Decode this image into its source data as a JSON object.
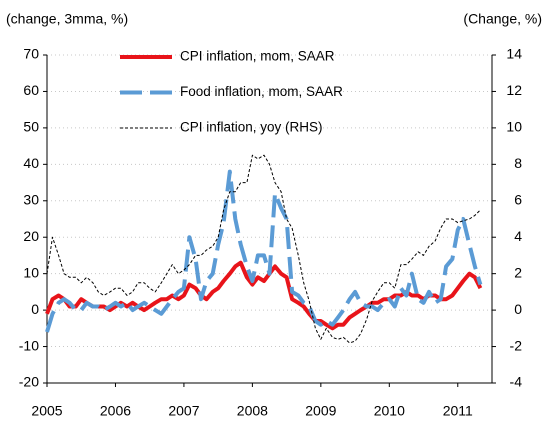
{
  "chart_data": {
    "type": "line",
    "y_label": "(change, 3mma, %)",
    "y2_label": "(Change, %)",
    "x": [
      2005,
      2005.08,
      2005.17,
      2005.25,
      2005.33,
      2005.42,
      2005.5,
      2005.58,
      2005.67,
      2005.75,
      2005.83,
      2005.92,
      2006,
      2006.08,
      2006.17,
      2006.25,
      2006.33,
      2006.42,
      2006.5,
      2006.58,
      2006.67,
      2006.75,
      2006.83,
      2006.92,
      2007,
      2007.08,
      2007.17,
      2007.25,
      2007.33,
      2007.42,
      2007.5,
      2007.58,
      2007.67,
      2007.75,
      2007.83,
      2007.92,
      2008,
      2008.08,
      2008.17,
      2008.25,
      2008.33,
      2008.42,
      2008.5,
      2008.58,
      2008.67,
      2008.75,
      2008.83,
      2008.92,
      2009,
      2009.08,
      2009.17,
      2009.25,
      2009.33,
      2009.42,
      2009.5,
      2009.58,
      2009.67,
      2009.75,
      2009.83,
      2009.92,
      2010,
      2010.08,
      2010.17,
      2010.25,
      2010.33,
      2010.42,
      2010.5,
      2010.58,
      2010.67,
      2010.75,
      2010.83,
      2010.92,
      2011,
      2011.08,
      2011.17,
      2011.25,
      2011.33
    ],
    "series": [
      {
        "name": "CPI inflation, mom, SAAR",
        "color": "#e8141a",
        "style": "solid",
        "width": 4,
        "axis": "y",
        "values": [
          -1,
          3,
          4,
          3,
          1,
          1,
          3,
          2,
          1,
          1,
          1,
          0,
          1,
          2,
          1,
          2,
          1,
          0,
          1,
          2,
          3,
          3,
          4,
          3,
          4,
          7,
          6,
          4,
          3,
          5,
          6,
          8,
          10,
          12,
          13,
          9,
          7,
          9,
          8,
          10,
          12,
          10,
          9,
          3,
          2,
          1,
          -1,
          -3,
          -3,
          -4,
          -5,
          -4,
          -4,
          -2,
          -1,
          0,
          1,
          2,
          2,
          3,
          3,
          4,
          4,
          5,
          4,
          4,
          3,
          4,
          4,
          3,
          3,
          4,
          6,
          8,
          10,
          9,
          6
        ]
      },
      {
        "name": "Food inflation, mom, SAAR",
        "color": "#5b9bd5",
        "style": "dashed",
        "width": 4,
        "axis": "y",
        "values": [
          -6,
          -1,
          2,
          3,
          2,
          0,
          0,
          2,
          1,
          1,
          0,
          1,
          2,
          1,
          2,
          0,
          1,
          2,
          1,
          0,
          -1,
          1,
          3,
          5,
          6,
          20,
          14,
          3,
          8,
          10,
          18,
          24,
          38,
          25,
          18,
          12,
          8,
          15,
          15,
          10,
          32,
          28,
          25,
          5,
          4,
          2,
          1,
          -3,
          -4,
          -3,
          -4,
          -2,
          0,
          3,
          5,
          2,
          1,
          1,
          0,
          2,
          3,
          1,
          6,
          4,
          10,
          3,
          2,
          5,
          2,
          3,
          12,
          14,
          22,
          25,
          18,
          12,
          7
        ]
      },
      {
        "name": "CPI inflation, yoy (RHS)",
        "color": "#000000",
        "style": "dotted",
        "width": 1,
        "axis": "y2",
        "values": [
          2,
          4,
          3,
          2,
          1.8,
          1.8,
          1.5,
          1.8,
          1.5,
          1,
          0.8,
          1,
          1.2,
          1.2,
          0.8,
          1,
          1.5,
          1.5,
          1.2,
          1,
          1.5,
          2,
          2.5,
          2,
          2.2,
          2.5,
          3,
          3,
          3.3,
          3.5,
          4,
          5.5,
          6.5,
          6.5,
          7,
          7,
          8.5,
          8.3,
          8.5,
          8,
          7,
          6.5,
          5,
          4.5,
          3,
          1.5,
          0.5,
          -1,
          -1.6,
          -1,
          -1.5,
          -1.6,
          -1.5,
          -1.8,
          -1.7,
          -1.3,
          -0.5,
          0.5,
          1,
          1.5,
          1.5,
          1.2,
          2.5,
          2.5,
          2.8,
          3.2,
          3,
          3.5,
          3.8,
          4.5,
          5,
          5,
          4.8,
          4.9,
          5,
          5.2,
          5.5
        ]
      }
    ],
    "xlim": [
      2005,
      2011.5
    ],
    "xticks": [
      2005,
      2006,
      2007,
      2008,
      2009,
      2010,
      2011
    ],
    "ylim": [
      -20,
      70
    ],
    "yticks": [
      -20,
      -10,
      0,
      10,
      20,
      30,
      40,
      50,
      60,
      70
    ],
    "y2lim": [
      -4,
      14
    ],
    "y2ticks": [
      -4,
      -2,
      0,
      2,
      4,
      6,
      8,
      10,
      12,
      14
    ],
    "grid": true,
    "legend": "top"
  }
}
